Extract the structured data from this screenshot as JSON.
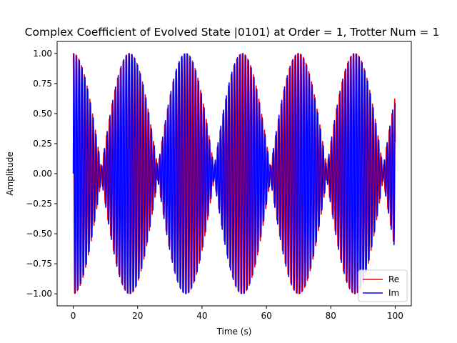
{
  "chart_data": {
    "type": "line",
    "title": "Complex Coefficient of Evolved State |0101⟩ at Order = 1, Trotter Num = 1",
    "xlabel": "Time (s)",
    "ylabel": "Amplitude",
    "xlim": [
      -5,
      105
    ],
    "ylim": [
      -1.1,
      1.1
    ],
    "xticks": [
      0,
      20,
      40,
      60,
      80,
      100
    ],
    "xtick_labels": [
      "0",
      "20",
      "40",
      "60",
      "80",
      "100"
    ],
    "yticks": [
      -1.0,
      -0.75,
      -0.5,
      -0.25,
      0.0,
      0.25,
      0.5,
      0.75,
      1.0
    ],
    "ytick_labels": [
      "−1.00",
      "−0.75",
      "−0.50",
      "−0.25",
      "0.00",
      "0.25",
      "0.50",
      "0.75",
      "1.00"
    ],
    "grid": false,
    "legend_position": "lower-right",
    "x_range": [
      0,
      100
    ],
    "series": [
      {
        "name": "Re",
        "color": "#ff0000",
        "kind": "cos"
      },
      {
        "name": "Im",
        "color": "#0000ff",
        "kind": "sin"
      }
    ],
    "envelope": {
      "period": 17.5,
      "fast_frequency_rad_per_s": 7.3,
      "peaks_at": [
        0,
        17.5,
        35,
        52.5,
        70,
        87.5
      ],
      "minima_at": [
        8.75,
        26.25,
        43.75,
        61.25,
        78.75,
        96.25
      ],
      "peak_amplitude": 1.0,
      "minimum_amplitude": 0.05
    }
  }
}
